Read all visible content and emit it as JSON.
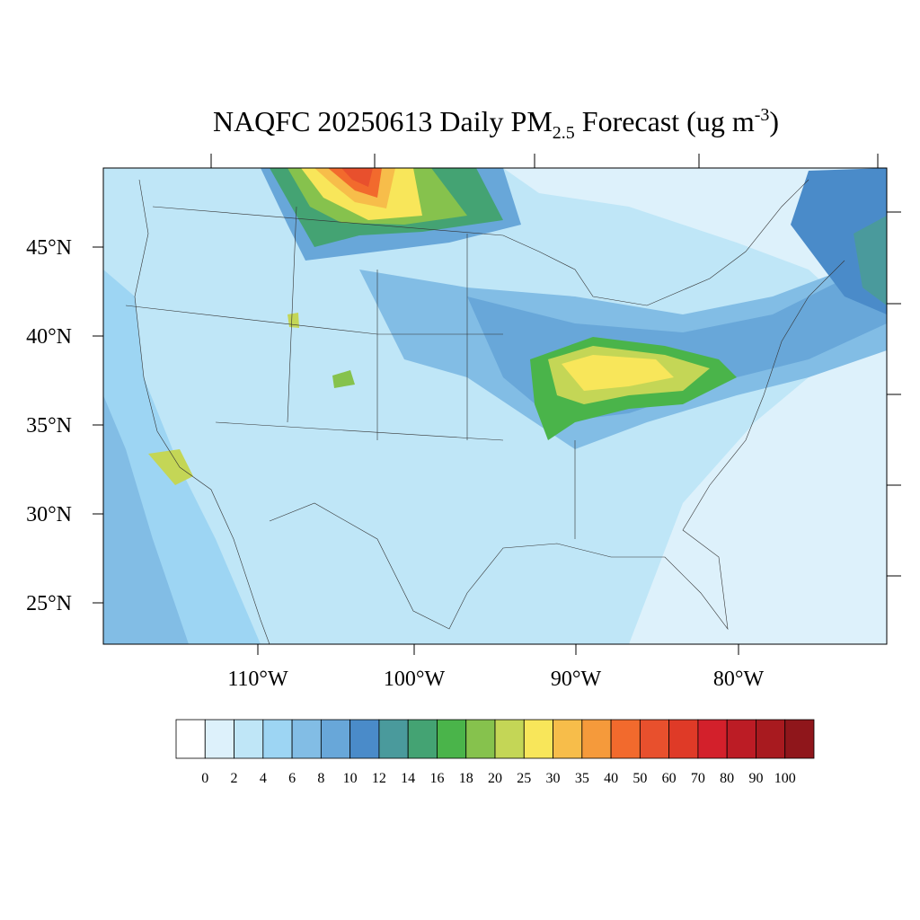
{
  "map": {
    "title": {
      "main": "NAQFC 20250613 Daily PM",
      "sub": "2.5",
      "rest": " Forecast (ug m",
      "sup": "-3",
      "end": ")"
    },
    "lat_labels": [
      "45°N",
      "40°N",
      "35°N",
      "30°N",
      "25°N"
    ],
    "lon_labels": [
      "110°W",
      "100°W",
      "90°W",
      "80°W"
    ],
    "colorbar": {
      "levels": [
        0,
        2,
        4,
        6,
        8,
        10,
        12,
        14,
        16,
        18,
        20,
        25,
        30,
        35,
        40,
        50,
        60,
        70,
        80,
        90,
        100
      ],
      "colors": [
        "#ffffff",
        "#ddf1fb",
        "#bfe6f7",
        "#9dd5f3",
        "#82bde5",
        "#68a7d9",
        "#4a8bc9",
        "#4a9a9c",
        "#44a373",
        "#4ab44a",
        "#86c24d",
        "#c4d656",
        "#f8e65a",
        "#f7bd4a",
        "#f59a3b",
        "#f26a2d",
        "#e8502d",
        "#df3a27",
        "#d3202b",
        "#bc1c25",
        "#a81a1f",
        "#8f161b"
      ]
    }
  }
}
